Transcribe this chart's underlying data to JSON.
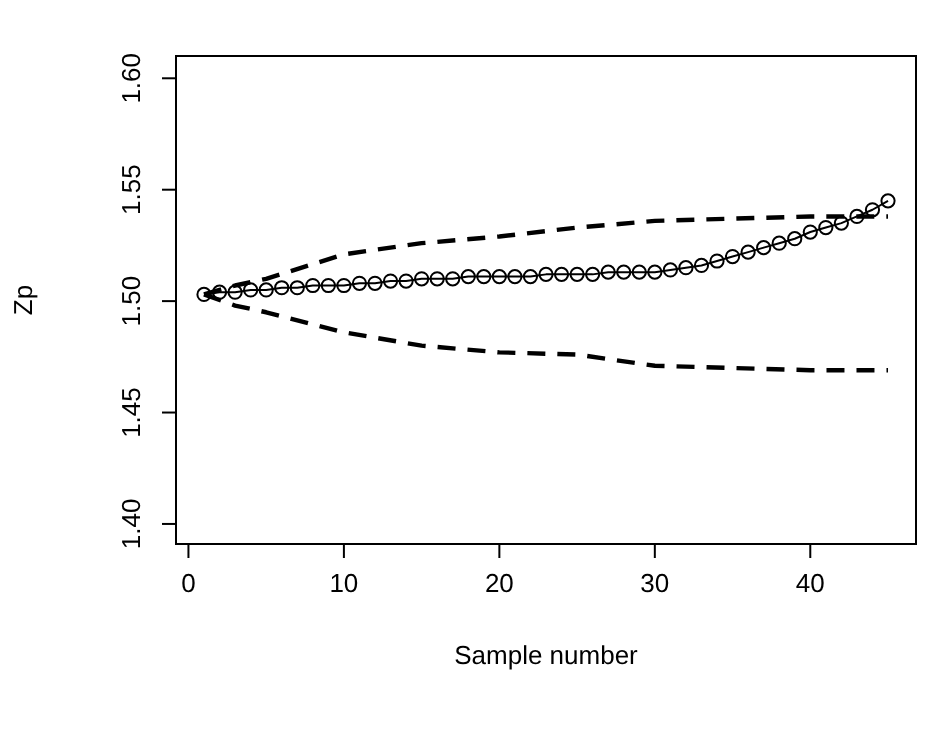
{
  "chart_data": {
    "type": "line",
    "xlabel": "Sample number",
    "ylabel": "Zp",
    "xlim": [
      -0.8,
      46.8
    ],
    "ylim": [
      1.391,
      1.61
    ],
    "xticks": [
      0,
      10,
      20,
      30,
      40
    ],
    "yticks": [
      {
        "value": 1.4,
        "label": "1.40"
      },
      {
        "value": 1.45,
        "label": "1.45"
      },
      {
        "value": 1.5,
        "label": "1.50"
      },
      {
        "value": 1.55,
        "label": "1.55"
      },
      {
        "value": 1.6,
        "label": "1.60"
      }
    ],
    "grid": false,
    "series": [
      {
        "color": "#000000",
        "marker": "circle",
        "line_style": "solid",
        "x": [
          1,
          2,
          3,
          4,
          5,
          6,
          7,
          8,
          9,
          10,
          11,
          12,
          13,
          14,
          15,
          16,
          17,
          18,
          19,
          20,
          21,
          22,
          23,
          24,
          25,
          26,
          27,
          28,
          29,
          30,
          31,
          32,
          33,
          34,
          35,
          36,
          37,
          38,
          39,
          40,
          41,
          42,
          43,
          44,
          45
        ],
        "values": [
          1.503,
          1.504,
          1.504,
          1.505,
          1.505,
          1.506,
          1.506,
          1.507,
          1.507,
          1.507,
          1.508,
          1.508,
          1.509,
          1.509,
          1.51,
          1.51,
          1.51,
          1.511,
          1.511,
          1.511,
          1.511,
          1.511,
          1.512,
          1.512,
          1.512,
          1.512,
          1.513,
          1.513,
          1.513,
          1.513,
          1.514,
          1.515,
          1.516,
          1.518,
          1.52,
          1.522,
          1.524,
          1.526,
          1.528,
          1.531,
          1.533,
          1.535,
          1.538,
          1.541,
          1.545
        ]
      },
      {
        "color": "#000000",
        "marker": "none",
        "line_style": "dashed",
        "x": [
          1,
          3,
          5,
          10,
          15,
          20,
          25,
          30,
          35,
          40,
          45
        ],
        "values": [
          1.503,
          1.507,
          1.51,
          1.521,
          1.526,
          1.529,
          1.533,
          1.536,
          1.537,
          1.538,
          1.538
        ]
      },
      {
        "color": "#000000",
        "marker": "none",
        "line_style": "dashed",
        "x": [
          1,
          3,
          5,
          10,
          15,
          20,
          25,
          30,
          35,
          40,
          45
        ],
        "values": [
          1.503,
          1.498,
          1.495,
          1.486,
          1.48,
          1.477,
          1.476,
          1.471,
          1.47,
          1.469,
          1.469
        ]
      }
    ]
  }
}
